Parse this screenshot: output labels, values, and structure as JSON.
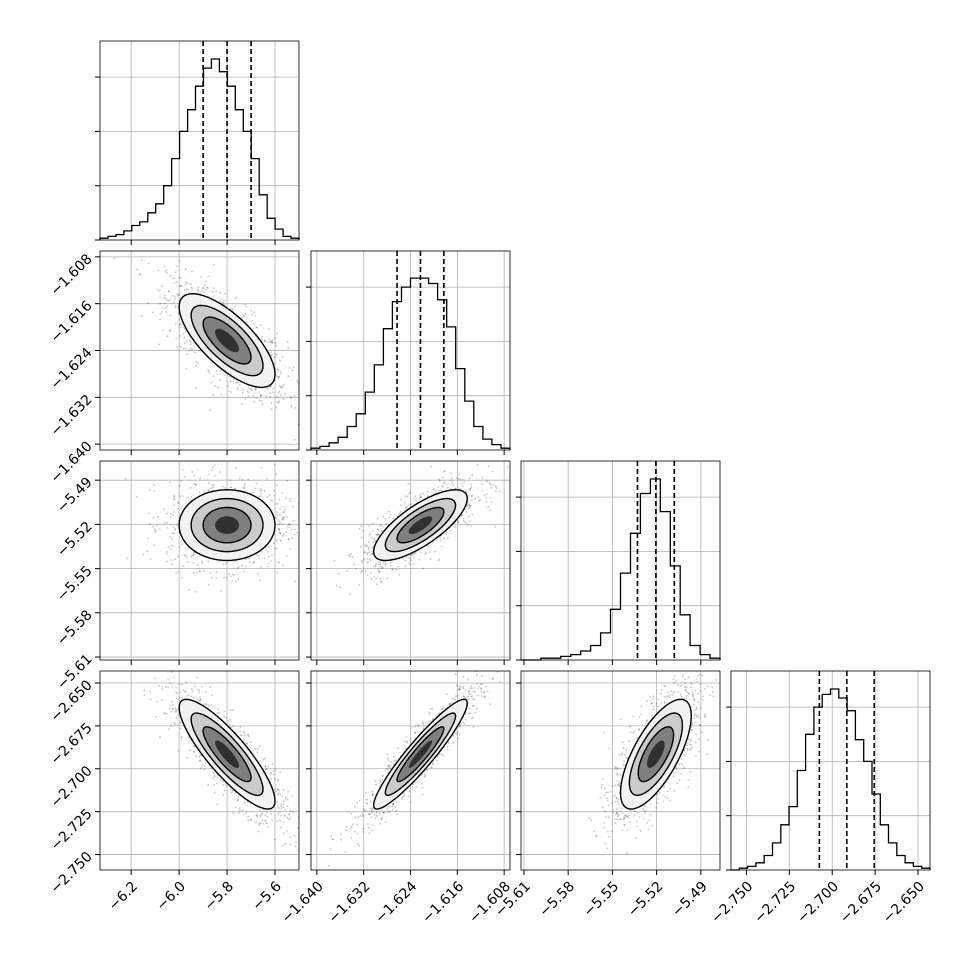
{
  "chart_data": {
    "type": "corner",
    "parameters": [
      {
        "key": "p0",
        "mean": -5.8,
        "sd": 0.1,
        "range": [
          -6.33,
          -5.5
        ],
        "ticks": [
          -6.2,
          -6.0,
          -5.8,
          -5.6
        ],
        "tick_labels": [
          "−6.2",
          "−6.0",
          "−5.8",
          "−5.6"
        ],
        "quantiles": [
          -5.9,
          -5.8,
          -5.7
        ]
      },
      {
        "key": "p1",
        "mean": -1.6223,
        "sd": 0.004,
        "range": [
          -1.641,
          -1.607
        ],
        "ticks": [
          -1.64,
          -1.632,
          -1.624,
          -1.616,
          -1.608
        ],
        "tick_labels": [
          "−1.640",
          "−1.632",
          "−1.624",
          "−1.616",
          "−1.608"
        ],
        "quantiles": [
          -1.6263,
          -1.6223,
          -1.6183
        ]
      },
      {
        "key": "p2",
        "mean": -5.5205,
        "sd": 0.012,
        "range": [
          -5.612,
          -5.477
        ],
        "ticks": [
          -5.61,
          -5.58,
          -5.55,
          -5.52,
          -5.49
        ],
        "tick_labels": [
          "−5.61",
          "−5.58",
          "−5.55",
          "−5.52",
          "−5.49"
        ],
        "quantiles": [
          -5.533,
          -5.5205,
          -5.508
        ]
      },
      {
        "key": "p3",
        "mean": -2.6915,
        "sd": 0.016,
        "range": [
          -2.759,
          -2.643
        ],
        "ticks": [
          -2.75,
          -2.725,
          -2.7,
          -2.675,
          -2.65
        ],
        "tick_labels": [
          "−2.750",
          "−2.725",
          "−2.700",
          "−2.675",
          "−2.650"
        ],
        "quantiles": [
          -2.7075,
          -2.6915,
          -2.6755
        ]
      }
    ],
    "correlations": {
      "p1_p0": -0.72,
      "p2_p0": 0.0,
      "p2_p1": 0.75,
      "p3_p0": -0.85,
      "p3_p1": 0.93,
      "p3_p2": 0.7
    },
    "histograms": {
      "p0": [
        0.01,
        0.02,
        0.03,
        0.05,
        0.08,
        0.1,
        0.15,
        0.2,
        0.3,
        0.45,
        0.6,
        0.72,
        0.85,
        0.95,
        1.0,
        0.93,
        0.85,
        0.72,
        0.6,
        0.45,
        0.25,
        0.12,
        0.06,
        0.02,
        0.01
      ],
      "p1": [
        0.01,
        0.02,
        0.04,
        0.07,
        0.13,
        0.2,
        0.32,
        0.47,
        0.67,
        0.82,
        0.9,
        0.95,
        0.95,
        0.92,
        0.83,
        0.68,
        0.45,
        0.27,
        0.13,
        0.06,
        0.03,
        0.01
      ],
      "p2": [
        0.0,
        0.0,
        0.01,
        0.01,
        0.02,
        0.03,
        0.05,
        0.08,
        0.15,
        0.28,
        0.48,
        0.7,
        0.92,
        1.0,
        0.82,
        0.52,
        0.25,
        0.08,
        0.03,
        0.01
      ],
      "p3": [
        0.0,
        0.01,
        0.02,
        0.04,
        0.08,
        0.15,
        0.25,
        0.35,
        0.55,
        0.75,
        0.9,
        0.97,
        1.0,
        0.95,
        0.88,
        0.72,
        0.6,
        0.42,
        0.25,
        0.15,
        0.08,
        0.04,
        0.02,
        0.01
      ]
    },
    "contour_levels": [
      "1-sigma",
      "1.5-sigma",
      "2-sigma"
    ],
    "grid": true,
    "colors": {
      "line": "#000000",
      "grid": "#b0b0b0",
      "density": "#000000"
    }
  }
}
